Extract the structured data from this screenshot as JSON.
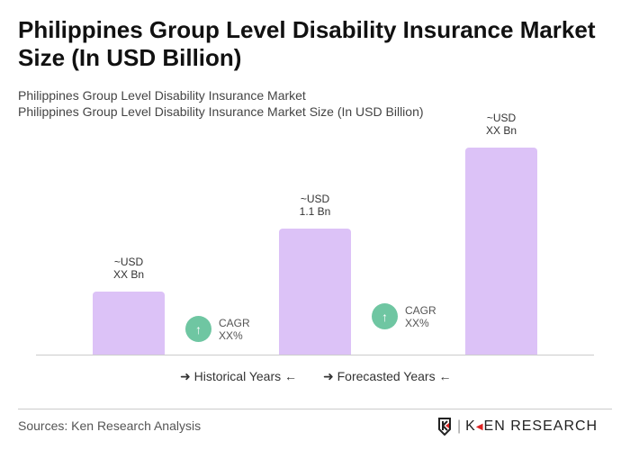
{
  "title": "Philippines Group Level Disability Insurance Market Size (In USD Billion)",
  "subtitle1": "Philippines Group Level Disability Insurance Market",
  "subtitle2": "Philippines Group Level Disability Insurance Market Size (In USD Billion)",
  "chart_data": {
    "type": "bar",
    "values": [
      0.55,
      1.1,
      1.81
    ],
    "data_labels": [
      [
        "~USD",
        "XX Bn"
      ],
      [
        "~USD",
        "1.1 Bn"
      ],
      [
        "~USD",
        "XX Bn"
      ]
    ],
    "bar_color": "#dcc2f7",
    "cagr": [
      {
        "label": "CAGR",
        "value": "XX%"
      },
      {
        "label": "CAGR",
        "value": "XX%"
      }
    ],
    "cagr_color": "#6fc6a2",
    "legend": [
      "Historical Years",
      "Forecasted Years"
    ]
  },
  "source": "Sources: Ken Research Analysis",
  "logo": "KEN RESEARCH"
}
